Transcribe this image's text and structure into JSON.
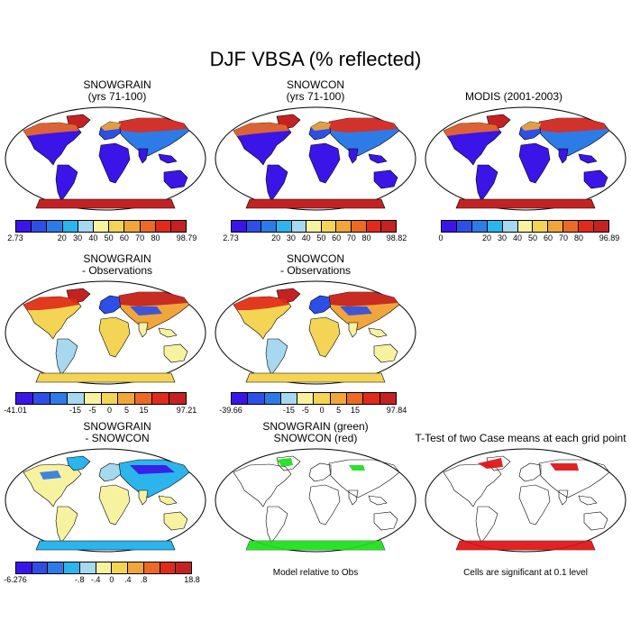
{
  "title": "DJF VBSA (% reflected)",
  "panels": [
    {
      "id": "p1",
      "title": "SNOWGRAIN\n(yrs 71-100)",
      "style": "abs",
      "labels": [
        "2.73",
        "20",
        "30",
        "40",
        "50",
        "60",
        "70",
        "80",
        "98.79"
      ]
    },
    {
      "id": "p2",
      "title": "SNOWCON\n(yrs 71-100)",
      "style": "abs",
      "labels": [
        "2.73",
        "20",
        "30",
        "40",
        "50",
        "60",
        "70",
        "80",
        "98.82"
      ]
    },
    {
      "id": "p3",
      "title": "MODIS (2001-2003)",
      "style": "abs",
      "labels": [
        "0",
        "20",
        "30",
        "40",
        "50",
        "60",
        "70",
        "80",
        "96.89"
      ]
    },
    {
      "id": "p4",
      "title": "SNOWGRAIN\n- Observations",
      "style": "diff",
      "labels": [
        "-41.01",
        "-15",
        "-5",
        "0",
        "5",
        "15",
        "97.21"
      ]
    },
    {
      "id": "p5",
      "title": "SNOWCON\n- Observations",
      "style": "diff",
      "labels": [
        "-39.66",
        "-15",
        "-5",
        "0",
        "5",
        "15",
        "97.84"
      ]
    },
    {
      "id": "p6",
      "title": "SNOWGRAIN\n- SNOWCON",
      "style": "diff2",
      "labels": [
        "-6.276",
        "-.8",
        "-.4",
        "0",
        ".4",
        ".8",
        "18.8"
      ]
    },
    {
      "id": "p7",
      "title": "SNOWGRAIN (green)\nSNOWCON (red)",
      "style": "green",
      "footnote": "Model relative to Obs"
    },
    {
      "id": "p8",
      "title": "T-Test of two Case means at each grid point",
      "style": "red",
      "footnote": "Cells are significant at 0.1 level"
    }
  ],
  "colors": {
    "abs": [
      "#3b15e8",
      "#2e4fe6",
      "#2d7be6",
      "#2bb5ec",
      "#a6d8f0",
      "#f7f2a0",
      "#f4d455",
      "#f0a63a",
      "#ea6a26",
      "#e02b1b",
      "#c42222"
    ],
    "diff": [
      "#3b15e8",
      "#2e4fe6",
      "#2d7be6",
      "#a6d8f0",
      "#f7f2a0",
      "#f4d455",
      "#f0a63a",
      "#ea6a26",
      "#e02b1b",
      "#c42222"
    ],
    "diff2": [
      "#3b15e8",
      "#2e4fe6",
      "#2d7be6",
      "#2bb5ec",
      "#a6d8f0",
      "#f7f2a0",
      "#f4d455",
      "#f0a63a",
      "#ea6a26",
      "#e02b1b",
      "#c42222"
    ]
  }
}
